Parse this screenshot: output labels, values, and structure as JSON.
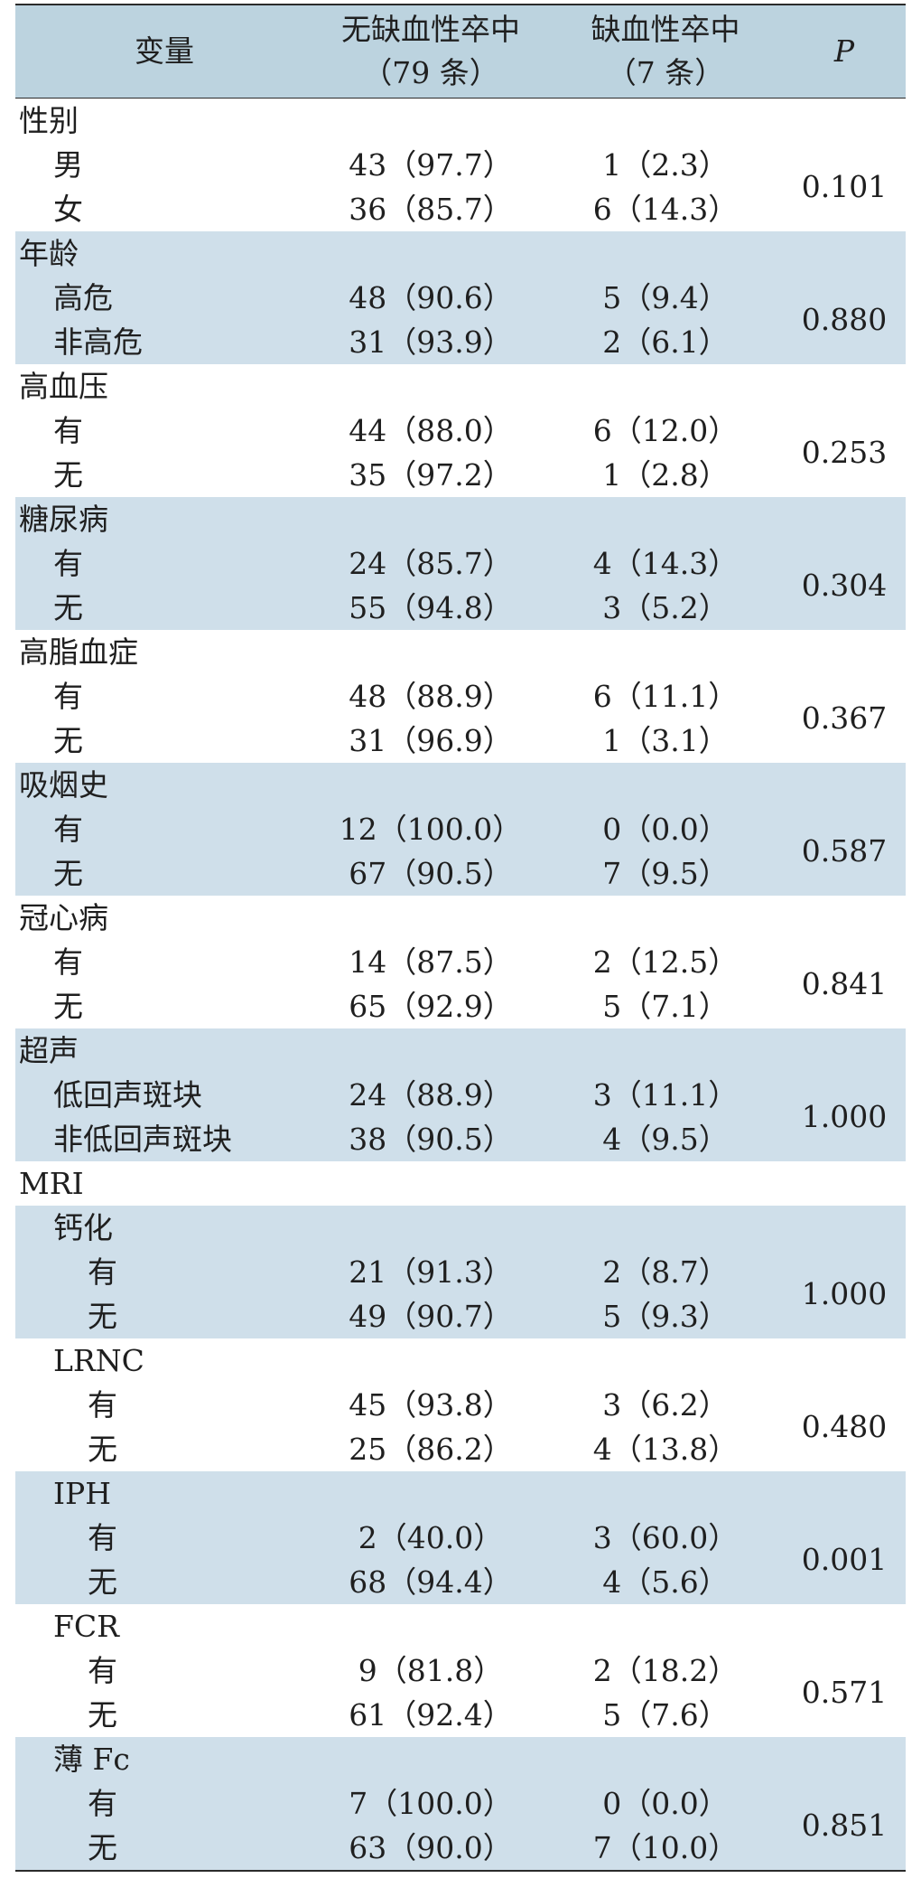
{
  "header": {
    "variable": "变量",
    "col1_line1": "无缺血性卒中",
    "col1_line2": "（79 条）",
    "col2_line1": "缺血性卒中",
    "col2_line2": "（7 条）",
    "p": "P"
  },
  "groups": [
    {
      "title": "性别",
      "level": 0,
      "shaded": false,
      "p": "0.101",
      "rows": [
        {
          "label": "男",
          "c1": "43（97.7）",
          "c2": "1（2.3）"
        },
        {
          "label": "女",
          "c1": "36（85.7）",
          "c2": "6（14.3）"
        }
      ]
    },
    {
      "title": "年龄",
      "level": 0,
      "shaded": true,
      "p": "0.880",
      "rows": [
        {
          "label": "高危",
          "c1": "48（90.6）",
          "c2": "5（9.4）"
        },
        {
          "label": "非高危",
          "c1": "31（93.9）",
          "c2": "2（6.1）"
        }
      ]
    },
    {
      "title": "高血压",
      "level": 0,
      "shaded": false,
      "p": "0.253",
      "rows": [
        {
          "label": "有",
          "c1": "44（88.0）",
          "c2": "6（12.0）"
        },
        {
          "label": "无",
          "c1": "35（97.2）",
          "c2": "1（2.8）"
        }
      ]
    },
    {
      "title": "糖尿病",
      "level": 0,
      "shaded": true,
      "p": "0.304",
      "rows": [
        {
          "label": "有",
          "c1": "24（85.7）",
          "c2": "4（14.3）"
        },
        {
          "label": "无",
          "c1": "55（94.8）",
          "c2": "3（5.2）"
        }
      ]
    },
    {
      "title": "高脂血症",
      "level": 0,
      "shaded": false,
      "p": "0.367",
      "rows": [
        {
          "label": "有",
          "c1": "48（88.9）",
          "c2": "6（11.1）"
        },
        {
          "label": "无",
          "c1": "31（96.9）",
          "c2": "1（3.1）"
        }
      ]
    },
    {
      "title": "吸烟史",
      "level": 0,
      "shaded": true,
      "p": "0.587",
      "rows": [
        {
          "label": "有",
          "c1": "12（100.0）",
          "c2": "0（0.0）"
        },
        {
          "label": "无",
          "c1": "67（90.5）",
          "c2": "7（9.5）"
        }
      ]
    },
    {
      "title": "冠心病",
      "level": 0,
      "shaded": false,
      "p": "0.841",
      "rows": [
        {
          "label": "有",
          "c1": "14（87.5）",
          "c2": "2（12.5）"
        },
        {
          "label": "无",
          "c1": "65（92.9）",
          "c2": "5（7.1）"
        }
      ]
    },
    {
      "title": "超声",
      "level": 0,
      "shaded": true,
      "p": "1.000",
      "rows": [
        {
          "label": "低回声斑块",
          "c1": "24（88.9）",
          "c2": "3（11.1）"
        },
        {
          "label": "非低回声斑块",
          "c1": "38（90.5）",
          "c2": "4（9.5）"
        }
      ]
    },
    {
      "title": "MRI",
      "level": 0,
      "shaded": false,
      "p": null,
      "rows": []
    },
    {
      "title": "钙化",
      "level": 1,
      "shaded": true,
      "p": "1.000",
      "rows": [
        {
          "label": "有",
          "c1": "21（91.3）",
          "c2": "2（8.7）"
        },
        {
          "label": "无",
          "c1": "49（90.7）",
          "c2": "5（9.3）"
        }
      ]
    },
    {
      "title": "LRNC",
      "level": 1,
      "shaded": false,
      "p": "0.480",
      "rows": [
        {
          "label": "有",
          "c1": "45（93.8）",
          "c2": "3（6.2）"
        },
        {
          "label": "无",
          "c1": "25（86.2）",
          "c2": "4（13.8）"
        }
      ]
    },
    {
      "title": "IPH",
      "level": 1,
      "shaded": true,
      "p": "0.001",
      "rows": [
        {
          "label": "有",
          "c1": "2（40.0）",
          "c2": "3（60.0）"
        },
        {
          "label": "无",
          "c1": "68（94.4）",
          "c2": "4（5.6）"
        }
      ]
    },
    {
      "title": "FCR",
      "level": 1,
      "shaded": false,
      "p": "0.571",
      "rows": [
        {
          "label": "有",
          "c1": "9（81.8）",
          "c2": "2（18.2）"
        },
        {
          "label": "无",
          "c1": "61（92.4）",
          "c2": "5（7.6）"
        }
      ]
    },
    {
      "title": "薄 Fc",
      "level": 1,
      "shaded": true,
      "p": "0.851",
      "rows": [
        {
          "label": "有",
          "c1": "7（100.0）",
          "c2": "0（0.0）"
        },
        {
          "label": "无",
          "c1": "63（90.0）",
          "c2": "7（10.0）"
        }
      ]
    }
  ]
}
